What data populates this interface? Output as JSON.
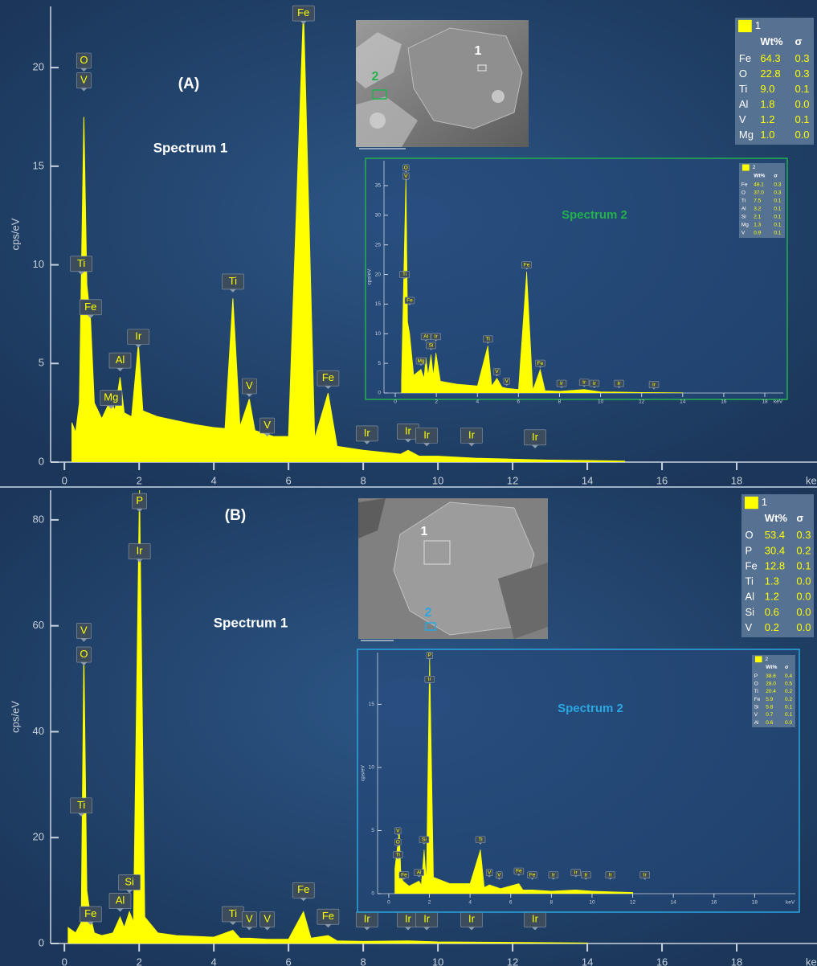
{
  "chart_data": [
    {
      "type": "area",
      "panel_label": "(A)",
      "title": "Spectrum 1",
      "title_color": "#ffffff",
      "x_label": "keV",
      "y_label": "cps/eV",
      "color": "#ffff00",
      "x": [
        0.2,
        0.3,
        0.4,
        0.52,
        0.6,
        0.7,
        0.8,
        1.0,
        1.25,
        1.35,
        1.49,
        1.6,
        1.8,
        1.98,
        2.1,
        2.5,
        3,
        3.5,
        4,
        4.3,
        4.51,
        4.7,
        4.95,
        5.1,
        5.43,
        5.6,
        6.0,
        6.4,
        6.7,
        7.06,
        7.3,
        8,
        9,
        9.2,
        9.5,
        10,
        11,
        12,
        13,
        14,
        15
      ],
      "values": [
        2,
        1.5,
        3,
        17.5,
        9,
        7.2,
        3,
        2.2,
        3.2,
        2.6,
        4.3,
        2.5,
        2.3,
        6,
        2.6,
        2.3,
        2.1,
        1.9,
        1.75,
        1.7,
        8.3,
        1.8,
        3.2,
        1.6,
        1.4,
        1.3,
        1.3,
        23,
        1.2,
        3.5,
        0.8,
        0.6,
        0.4,
        0.6,
        0.3,
        0.3,
        0.2,
        0.15,
        0.1,
        0.08,
        0.05
      ],
      "xlim": [
        -0.37,
        20.15
      ],
      "xticks": [
        0,
        2,
        4,
        6,
        8,
        10,
        12,
        14,
        16,
        18
      ],
      "ylim": [
        0,
        23.1
      ],
      "yticks": [
        0,
        5,
        10,
        15,
        20
      ],
      "annotations": [
        {
          "text": "O",
          "x": 0.52,
          "y": 19.8
        },
        {
          "text": "V",
          "x": 0.52,
          "y": 18.8
        },
        {
          "text": "Ti",
          "x": 0.45,
          "y": 9.5
        },
        {
          "text": "Fe",
          "x": 0.7,
          "y": 7.3
        },
        {
          "text": "Mg",
          "x": 1.25,
          "y": 2.7
        },
        {
          "text": "Al",
          "x": 1.49,
          "y": 4.6
        },
        {
          "text": "Ir",
          "x": 1.98,
          "y": 5.8
        },
        {
          "text": "Ti",
          "x": 4.51,
          "y": 8.6
        },
        {
          "text": "V",
          "x": 4.95,
          "y": 3.3
        },
        {
          "text": "V",
          "x": 5.43,
          "y": 1.3
        },
        {
          "text": "Fe",
          "x": 6.4,
          "y": 22.2
        },
        {
          "text": "Fe",
          "x": 7.06,
          "y": 3.7
        },
        {
          "text": "Ir",
          "x": 8.1,
          "y": 0.9
        },
        {
          "text": "Ir",
          "x": 9.2,
          "y": 1.0
        },
        {
          "text": "Ir",
          "x": 9.7,
          "y": 0.8
        },
        {
          "text": "Ir",
          "x": 10.9,
          "y": 0.8
        },
        {
          "text": "Ir",
          "x": 12.6,
          "y": 0.7
        }
      ],
      "table": {
        "name": "1",
        "columns": [
          "Wt%",
          "σ"
        ],
        "rows": [
          [
            "Fe",
            "64.3",
            "0.3"
          ],
          [
            "O",
            "22.8",
            "0.3"
          ],
          [
            "Ti",
            "9.0",
            "0.1"
          ],
          [
            "Al",
            "1.8",
            "0.0"
          ],
          [
            "V",
            "1.2",
            "0.1"
          ],
          [
            "Mg",
            "1.0",
            "0.0"
          ]
        ]
      },
      "image_markers": [
        {
          "text": "1",
          "color": "#ffffff"
        },
        {
          "text": "2",
          "color": "#22b14c"
        }
      ]
    },
    {
      "type": "area",
      "title": "Spectrum 2",
      "title_color": "#22b14c",
      "x_label": "keV",
      "y_label": "cps/eV",
      "color": "#ffff00",
      "x": [
        0.3,
        0.52,
        0.6,
        0.7,
        0.9,
        1.25,
        1.4,
        1.49,
        1.6,
        1.74,
        1.85,
        1.98,
        2.2,
        3,
        4,
        4.51,
        4.7,
        4.95,
        5.2,
        5.43,
        6,
        6.4,
        6.7,
        7.06,
        7.3,
        8,
        9.2,
        10,
        12,
        14
      ],
      "values": [
        2,
        37,
        12,
        10,
        3,
        4,
        2.5,
        6,
        3,
        6.5,
        3,
        6.8,
        2,
        1.5,
        1.2,
        8,
        1.2,
        2.5,
        1,
        0.8,
        0.6,
        20.5,
        0.5,
        4,
        0.4,
        0.3,
        0.6,
        0.2,
        0.1,
        0.05
      ],
      "xlim": [
        -0.55,
        18.9
      ],
      "xticks": [
        0,
        2,
        4,
        6,
        8,
        10,
        12,
        14,
        16,
        18
      ],
      "ylim": [
        0,
        39.2
      ],
      "yticks": [
        0,
        5,
        10,
        15,
        20,
        25,
        30,
        35
      ],
      "annotations": [
        {
          "text": "O",
          "x": 0.52,
          "y": 37.2
        },
        {
          "text": "V",
          "x": 0.52,
          "y": 35.8
        },
        {
          "text": "Ti",
          "x": 0.45,
          "y": 19.2
        },
        {
          "text": "Fe",
          "x": 0.7,
          "y": 14.8
        },
        {
          "text": "Mg",
          "x": 1.25,
          "y": 4.6
        },
        {
          "text": "Al",
          "x": 1.49,
          "y": 8.7
        },
        {
          "text": "Si",
          "x": 1.74,
          "y": 7.2
        },
        {
          "text": "Ir",
          "x": 1.98,
          "y": 8.7
        },
        {
          "text": "Ti",
          "x": 4.51,
          "y": 8.3
        },
        {
          "text": "V",
          "x": 4.95,
          "y": 2.8
        },
        {
          "text": "V",
          "x": 5.43,
          "y": 1.2
        },
        {
          "text": "Fe",
          "x": 6.4,
          "y": 20.8
        },
        {
          "text": "Fe",
          "x": 7.06,
          "y": 4.2
        },
        {
          "text": "Ir",
          "x": 8.1,
          "y": 0.8
        },
        {
          "text": "Ir",
          "x": 9.2,
          "y": 1.0
        },
        {
          "text": "Ir",
          "x": 9.7,
          "y": 0.8
        },
        {
          "text": "Ir",
          "x": 10.9,
          "y": 0.8
        },
        {
          "text": "Ir",
          "x": 12.6,
          "y": 0.6
        }
      ],
      "table": {
        "name": "2",
        "columns": [
          "Wt%",
          "σ"
        ],
        "rows": [
          [
            "Fe",
            "48.1",
            "0.3"
          ],
          [
            "O",
            "37.0",
            "0.3"
          ],
          [
            "Ti",
            "7.5",
            "0.1"
          ],
          [
            "Al",
            "3.2",
            "0.1"
          ],
          [
            "Si",
            "2.1",
            "0.1"
          ],
          [
            "Mg",
            "1.3",
            "0.1"
          ],
          [
            "V",
            "0.9",
            "0.1"
          ]
        ]
      }
    },
    {
      "type": "area",
      "panel_label": "(B)",
      "title": "Spectrum 1",
      "title_color": "#ffffff",
      "x_label": "keV",
      "y_label": "cps/eV",
      "color": "#ffff00",
      "x": [
        0.1,
        0.3,
        0.45,
        0.52,
        0.6,
        0.7,
        0.8,
        1.0,
        1.3,
        1.49,
        1.6,
        1.74,
        1.85,
        2.01,
        2.15,
        2.5,
        3,
        4,
        4.51,
        4.7,
        4.95,
        5.43,
        6,
        6.4,
        6.6,
        7.06,
        7.3,
        8,
        9.2,
        10,
        12,
        14
      ],
      "values": [
        3,
        2,
        4,
        55,
        10,
        5,
        2,
        1.5,
        2,
        5,
        3,
        6,
        4,
        86,
        5,
        2,
        1.5,
        1.2,
        2.5,
        1,
        1,
        0.8,
        0.8,
        6,
        1,
        1.5,
        0.5,
        0.4,
        0.5,
        0.3,
        0.2,
        0.1
      ],
      "xlim": [
        -0.37,
        20.15
      ],
      "xticks": [
        0,
        2,
        4,
        6,
        8,
        10,
        12,
        14,
        16,
        18
      ],
      "ylim": [
        0,
        85.6
      ],
      "yticks": [
        0,
        20,
        40,
        60,
        80
      ],
      "annotations": [
        {
          "text": "P",
          "x": 2.01,
          "y": 81.5
        },
        {
          "text": "Ir",
          "x": 2.01,
          "y": 72
        },
        {
          "text": "V",
          "x": 0.52,
          "y": 57
        },
        {
          "text": "O",
          "x": 0.52,
          "y": 52.5
        },
        {
          "text": "Ti",
          "x": 0.45,
          "y": 24
        },
        {
          "text": "Fe",
          "x": 0.7,
          "y": 3.5
        },
        {
          "text": "Al",
          "x": 1.49,
          "y": 6
        },
        {
          "text": "Si",
          "x": 1.74,
          "y": 9.5
        },
        {
          "text": "Ti",
          "x": 4.51,
          "y": 3.5
        },
        {
          "text": "V",
          "x": 4.95,
          "y": 2.5
        },
        {
          "text": "V",
          "x": 5.43,
          "y": 2.5
        },
        {
          "text": "Fe",
          "x": 6.4,
          "y": 8
        },
        {
          "text": "Fe",
          "x": 7.06,
          "y": 3
        },
        {
          "text": "Ir",
          "x": 8.1,
          "y": 2.5
        },
        {
          "text": "Ir",
          "x": 9.2,
          "y": 2.5
        },
        {
          "text": "Ir",
          "x": 9.7,
          "y": 2.5
        },
        {
          "text": "Ir",
          "x": 10.9,
          "y": 2.5
        },
        {
          "text": "Ir",
          "x": 12.6,
          "y": 2.5
        }
      ],
      "table": {
        "name": "1",
        "columns": [
          "Wt%",
          "σ"
        ],
        "rows": [
          [
            "O",
            "53.4",
            "0.3"
          ],
          [
            "P",
            "30.4",
            "0.2"
          ],
          [
            "Fe",
            "12.8",
            "0.1"
          ],
          [
            "Ti",
            "1.3",
            "0.0"
          ],
          [
            "Al",
            "1.2",
            "0.0"
          ],
          [
            "Si",
            "0.6",
            "0.0"
          ],
          [
            "V",
            "0.2",
            "0.0"
          ]
        ]
      },
      "image_markers": [
        {
          "text": "1",
          "color": "#ffffff"
        },
        {
          "text": "2",
          "color": "#2aa6e0"
        }
      ]
    },
    {
      "type": "area",
      "title": "Spectrum 2",
      "title_color": "#2aa6e0",
      "x_label": "keV",
      "y_label": "cps/eV",
      "color": "#ffff00",
      "x": [
        0.3,
        0.52,
        0.6,
        0.7,
        1.0,
        1.49,
        1.6,
        1.74,
        1.85,
        2.01,
        2.2,
        3,
        4,
        4.51,
        4.7,
        4.95,
        5.5,
        6.4,
        6.6,
        7.06,
        8,
        9.2,
        10,
        12
      ],
      "values": [
        2,
        5,
        1.5,
        1,
        0.6,
        1,
        0.7,
        3.5,
        1,
        19,
        1.3,
        0.8,
        0.8,
        3.5,
        0.5,
        0.7,
        0.4,
        0.8,
        0.3,
        0.3,
        0.2,
        0.3,
        0.2,
        0.1
      ],
      "xlim": [
        -0.55,
        20
      ],
      "xticks": [
        0,
        2,
        4,
        6,
        8,
        10,
        12,
        14,
        16,
        18
      ],
      "ylim": [
        0,
        19.1
      ],
      "yticks": [
        0,
        5,
        10,
        15
      ],
      "annotations": [
        {
          "text": "P",
          "x": 2.01,
          "y": 18.5
        },
        {
          "text": "Ir",
          "x": 2.01,
          "y": 16.6
        },
        {
          "text": "V",
          "x": 0.45,
          "y": 4.6
        },
        {
          "text": "O",
          "x": 0.45,
          "y": 3.7
        },
        {
          "text": "Ti",
          "x": 0.45,
          "y": 2.7
        },
        {
          "text": "Fe",
          "x": 0.75,
          "y": 1.1
        },
        {
          "text": "Al",
          "x": 1.49,
          "y": 1.3
        },
        {
          "text": "Si",
          "x": 1.74,
          "y": 3.9
        },
        {
          "text": "Ti",
          "x": 4.51,
          "y": 3.9
        },
        {
          "text": "V",
          "x": 4.95,
          "y": 1.3
        },
        {
          "text": "V",
          "x": 5.43,
          "y": 1.1
        },
        {
          "text": "Fe",
          "x": 6.4,
          "y": 1.4
        },
        {
          "text": "Fe",
          "x": 7.06,
          "y": 1.1
        },
        {
          "text": "Ir",
          "x": 8.1,
          "y": 1.1
        },
        {
          "text": "Ir",
          "x": 9.2,
          "y": 1.3
        },
        {
          "text": "Ir",
          "x": 9.7,
          "y": 1.1
        },
        {
          "text": "Ir",
          "x": 10.9,
          "y": 1.1
        },
        {
          "text": "Ir",
          "x": 12.6,
          "y": 1.1
        }
      ],
      "table": {
        "name": "2",
        "columns": [
          "Wt%",
          "σ"
        ],
        "rows": [
          [
            "P",
            "38.6",
            "0.4"
          ],
          [
            "O",
            "28.0",
            "0.5"
          ],
          [
            "Ti",
            "20.4",
            "0.2"
          ],
          [
            "Fe",
            "5.9",
            "0.2"
          ],
          [
            "Si",
            "5.8",
            "0.1"
          ],
          [
            "V",
            "0.7",
            "0.1"
          ],
          [
            "Al",
            "0.6",
            "0.0"
          ]
        ]
      }
    }
  ]
}
